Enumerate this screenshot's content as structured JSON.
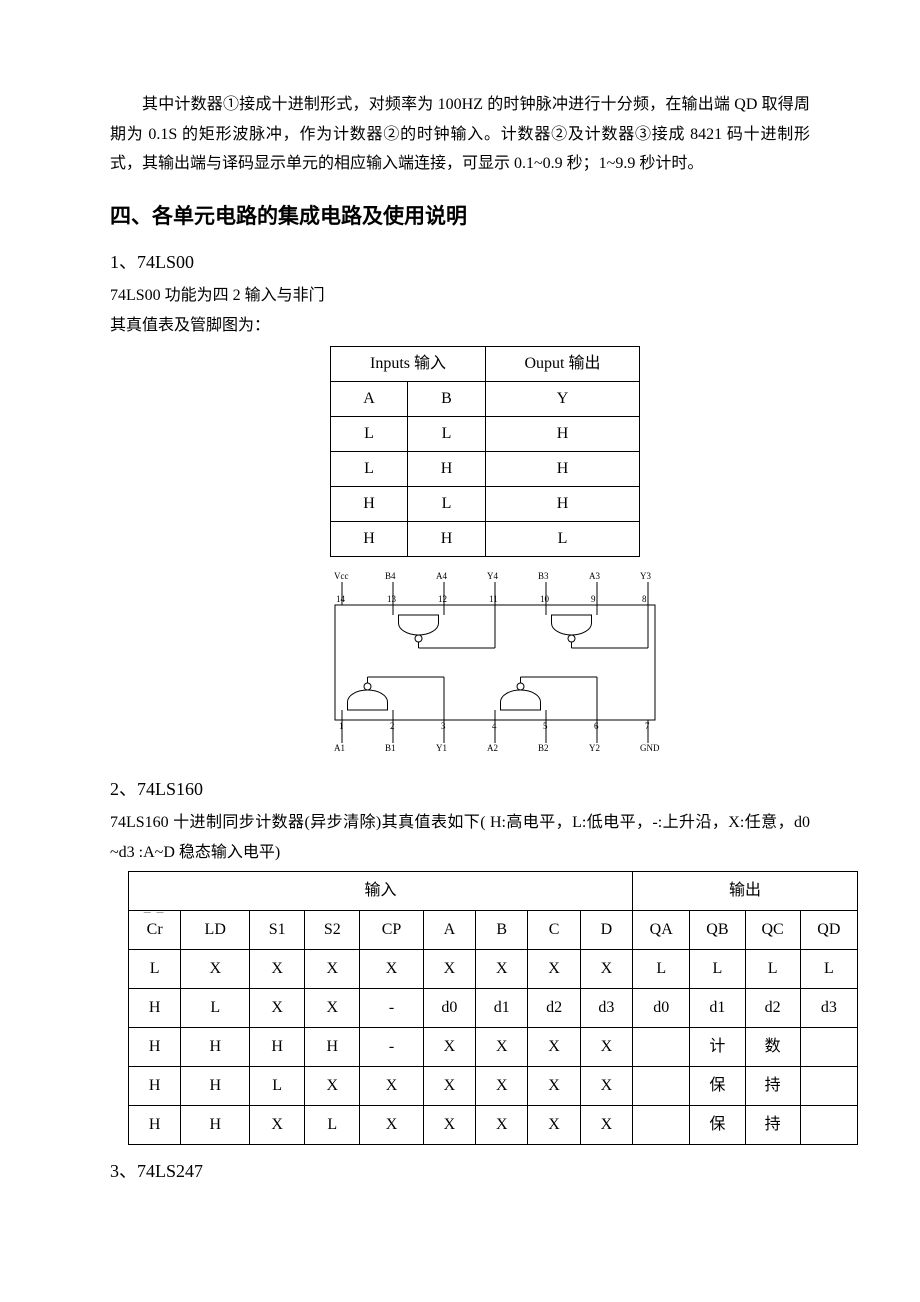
{
  "intro_para": "其中计数器①接成十进制形式，对频率为 100HZ 的时钟脉冲进行十分频，在输出端 QD 取得周期为 0.1S 的矩形波脉冲，作为计数器②的时钟输入。计数器②及计数器③接成 8421 码十进制形式，其输出端与译码显示单元的相应输入端连接，可显示 0.1~0.9 秒；1~9.9 秒计时。",
  "section4_title": "四、各单元电路的集成电路及使用说明",
  "s1": {
    "heading": "1、74LS00",
    "line1": "74LS00 功能为四 2 输入与非门",
    "line2": "其真值表及管脚图为：",
    "table": {
      "header_inputs": "Inputs 输入",
      "header_output": "Ouput 输出",
      "cols": [
        "A",
        "B",
        "Y"
      ],
      "rows": [
        [
          "L",
          "L",
          "H"
        ],
        [
          "L",
          "H",
          "H"
        ],
        [
          "H",
          "L",
          "H"
        ],
        [
          "H",
          "H",
          "L"
        ]
      ]
    },
    "pin_diagram": {
      "top_labels": [
        "Vcc",
        "B4",
        "A4",
        "Y4",
        "B3",
        "A3",
        "Y3"
      ],
      "top_pins": [
        "14",
        "13",
        "12",
        "11",
        "10",
        "9",
        "8"
      ],
      "bottom_pins": [
        "1",
        "2",
        "3",
        "4",
        "5",
        "6",
        "7"
      ],
      "bottom_labels": [
        "A1",
        "B1",
        "Y1",
        "A2",
        "B2",
        "Y2",
        "GND"
      ]
    }
  },
  "s2": {
    "heading": "2、74LS160",
    "line1": "74LS160 十进制同步计数器(异步清除)其真值表如下( H:高电平，L:低电平，-:上升沿，X:任意，d0 ~d3 :A~D 稳态输入电平)",
    "table": {
      "group_in": "输入",
      "group_out": "输出",
      "cols_in": [
        "Cr",
        "LD",
        "S1",
        "S2",
        "CP",
        "A",
        "B",
        "C",
        "D"
      ],
      "cols_out": [
        "QA",
        "QB",
        "QC",
        "QD"
      ],
      "rows": [
        {
          "in": [
            "L",
            "X",
            "X",
            "X",
            "X",
            "X",
            "X",
            "X",
            "X"
          ],
          "out": [
            "L",
            "L",
            "L",
            "L"
          ]
        },
        {
          "in": [
            "H",
            "L",
            "X",
            "X",
            "-",
            "d0",
            "d1",
            "d2",
            "d3"
          ],
          "out": [
            "d0",
            "d1",
            "d2",
            "d3"
          ]
        },
        {
          "in": [
            "H",
            "H",
            "H",
            "H",
            "-",
            "X",
            "X",
            "X",
            "X"
          ],
          "out": [
            "",
            "计",
            "数",
            ""
          ]
        },
        {
          "in": [
            "H",
            "H",
            "L",
            "X",
            "X",
            "X",
            "X",
            "X",
            "X"
          ],
          "out": [
            "",
            "保",
            "持",
            ""
          ]
        },
        {
          "in": [
            "H",
            "H",
            "X",
            "L",
            "X",
            "X",
            "X",
            "X",
            "X"
          ],
          "out": [
            "",
            "保",
            "持",
            ""
          ]
        }
      ]
    }
  },
  "s3": {
    "heading": "3、74LS247"
  }
}
